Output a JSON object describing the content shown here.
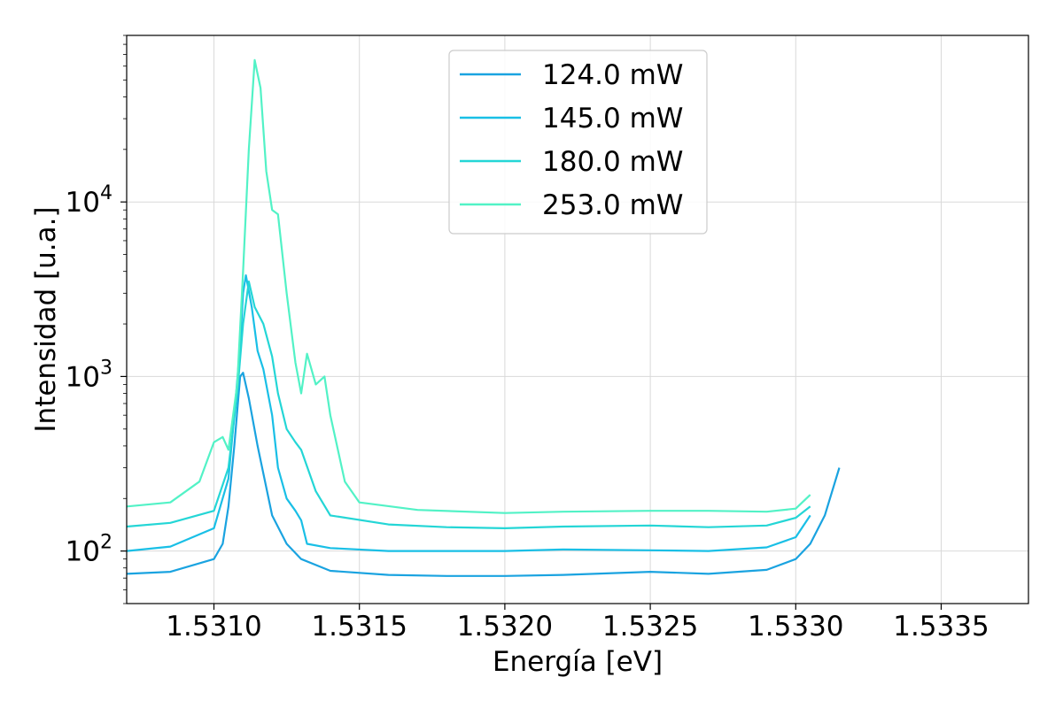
{
  "chart_data": {
    "type": "line",
    "xlabel": "Energía [eV]",
    "ylabel": "Intensidad [u.a.]",
    "xlim": [
      1.5307,
      1.5338
    ],
    "ylim": [
      50,
      90000
    ],
    "yscale": "log",
    "grid": true,
    "legend_position": "top-center",
    "x_ticks": [
      {
        "value": 1.531,
        "label": "1.5310"
      },
      {
        "value": 1.5315,
        "label": "1.5315"
      },
      {
        "value": 1.532,
        "label": "1.5320"
      },
      {
        "value": 1.5325,
        "label": "1.5325"
      },
      {
        "value": 1.533,
        "label": "1.5330"
      },
      {
        "value": 1.5335,
        "label": "1.5335"
      }
    ],
    "y_ticks": [
      {
        "value": 100,
        "base": "10",
        "exp": "2"
      },
      {
        "value": 1000,
        "base": "10",
        "exp": "3"
      },
      {
        "value": 10000,
        "base": "10",
        "exp": "4"
      }
    ],
    "series": [
      {
        "name": "124.0 mW",
        "color": "#1aa3e0",
        "points": [
          [
            1.5307,
            74
          ],
          [
            1.53085,
            76
          ],
          [
            1.531,
            90
          ],
          [
            1.53103,
            110
          ],
          [
            1.53105,
            180
          ],
          [
            1.53107,
            400
          ],
          [
            1.53109,
            1000
          ],
          [
            1.5311,
            1050
          ],
          [
            1.53112,
            750
          ],
          [
            1.53115,
            400
          ],
          [
            1.5312,
            160
          ],
          [
            1.53125,
            110
          ],
          [
            1.5313,
            90
          ],
          [
            1.5314,
            77
          ],
          [
            1.5316,
            73
          ],
          [
            1.5318,
            72
          ],
          [
            1.532,
            72
          ],
          [
            1.5322,
            73
          ],
          [
            1.5325,
            76
          ],
          [
            1.5327,
            74
          ],
          [
            1.5329,
            78
          ],
          [
            1.533,
            90
          ],
          [
            1.53305,
            110
          ],
          [
            1.5331,
            160
          ],
          [
            1.53315,
            300
          ],
          [
            1.5318,
            72
          ]
        ]
      },
      {
        "name": "145.0 mW",
        "color": "#19bfe6",
        "points": [
          [
            1.5307,
            100
          ],
          [
            1.53085,
            106
          ],
          [
            1.531,
            135
          ],
          [
            1.53105,
            260
          ],
          [
            1.53107,
            600
          ],
          [
            1.53109,
            1500
          ],
          [
            1.5311,
            3000
          ],
          [
            1.53111,
            3800
          ],
          [
            1.53113,
            2500
          ],
          [
            1.53115,
            1400
          ],
          [
            1.53117,
            1100
          ],
          [
            1.5312,
            600
          ],
          [
            1.53122,
            300
          ],
          [
            1.53125,
            200
          ],
          [
            1.53128,
            170
          ],
          [
            1.5313,
            150
          ],
          [
            1.53132,
            110
          ],
          [
            1.5314,
            104
          ],
          [
            1.5316,
            100
          ],
          [
            1.5318,
            100
          ],
          [
            1.532,
            100
          ],
          [
            1.5322,
            102
          ],
          [
            1.5325,
            101
          ],
          [
            1.5327,
            100
          ],
          [
            1.5329,
            105
          ],
          [
            1.533,
            120
          ],
          [
            1.53305,
            160
          ]
        ]
      },
      {
        "name": "180.0 mW",
        "color": "#24d6d6",
        "points": [
          [
            1.5307,
            138
          ],
          [
            1.53085,
            145
          ],
          [
            1.531,
            170
          ],
          [
            1.53105,
            300
          ],
          [
            1.53108,
            800
          ],
          [
            1.5311,
            2000
          ],
          [
            1.53112,
            3500
          ],
          [
            1.53114,
            2500
          ],
          [
            1.53117,
            2000
          ],
          [
            1.5312,
            1300
          ],
          [
            1.53122,
            800
          ],
          [
            1.53125,
            500
          ],
          [
            1.53128,
            420
          ],
          [
            1.5313,
            380
          ],
          [
            1.53135,
            220
          ],
          [
            1.5314,
            160
          ],
          [
            1.5316,
            142
          ],
          [
            1.5318,
            137
          ],
          [
            1.532,
            135
          ],
          [
            1.5322,
            138
          ],
          [
            1.5325,
            140
          ],
          [
            1.5327,
            137
          ],
          [
            1.5329,
            140
          ],
          [
            1.533,
            155
          ],
          [
            1.53305,
            180
          ]
        ]
      },
      {
        "name": "253.0 mW",
        "color": "#52f2c6",
        "points": [
          [
            1.5307,
            180
          ],
          [
            1.53085,
            190
          ],
          [
            1.53095,
            250
          ],
          [
            1.531,
            420
          ],
          [
            1.53103,
            450
          ],
          [
            1.53105,
            380
          ],
          [
            1.53108,
            900
          ],
          [
            1.5311,
            4000
          ],
          [
            1.53112,
            20000
          ],
          [
            1.53114,
            65000
          ],
          [
            1.53116,
            45000
          ],
          [
            1.53118,
            15000
          ],
          [
            1.5312,
            9000
          ],
          [
            1.53122,
            8500
          ],
          [
            1.53125,
            3000
          ],
          [
            1.53128,
            1200
          ],
          [
            1.5313,
            800
          ],
          [
            1.53132,
            1350
          ],
          [
            1.53135,
            900
          ],
          [
            1.53138,
            1000
          ],
          [
            1.5314,
            600
          ],
          [
            1.53145,
            250
          ],
          [
            1.5315,
            190
          ],
          [
            1.5317,
            172
          ],
          [
            1.532,
            165
          ],
          [
            1.5322,
            168
          ],
          [
            1.5325,
            170
          ],
          [
            1.5327,
            170
          ],
          [
            1.5329,
            168
          ],
          [
            1.533,
            175
          ],
          [
            1.53305,
            210
          ]
        ]
      }
    ]
  }
}
